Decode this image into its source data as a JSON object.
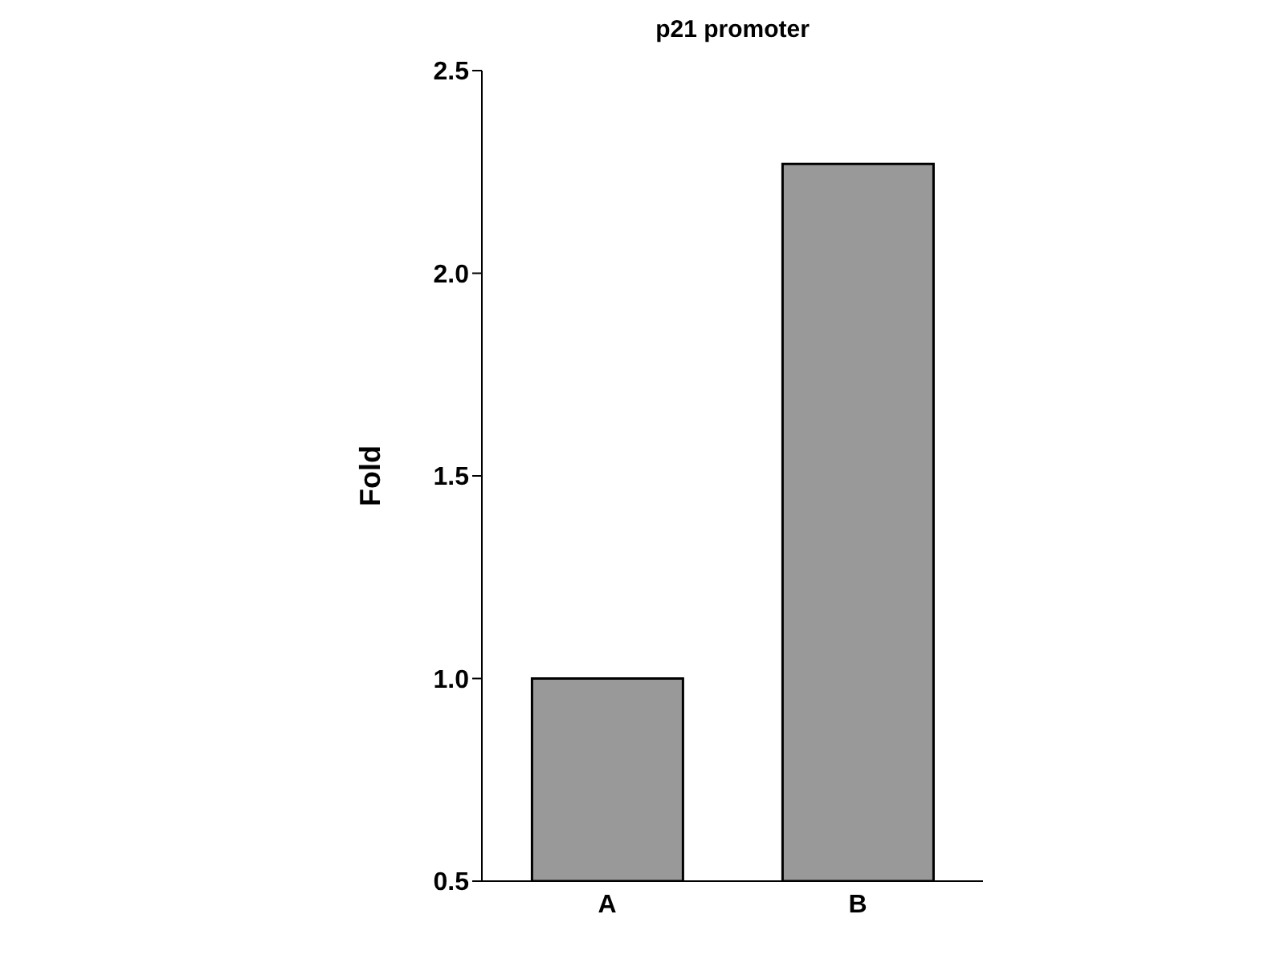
{
  "chart_data": {
    "type": "bar",
    "title": "p21 promoter",
    "ylabel": "Fold",
    "categories": [
      "A",
      "B"
    ],
    "values": [
      1.0,
      2.27
    ],
    "color": "#999999",
    "ylim": [
      0.5,
      2.5
    ],
    "yticks": [
      {
        "value": 0.5,
        "label": "0.5"
      },
      {
        "value": 1.0,
        "label": "1.0"
      },
      {
        "value": 1.5,
        "label": "1.5"
      },
      {
        "value": 2.0,
        "label": "2.0"
      },
      {
        "value": 2.5,
        "label": "2.5"
      }
    ],
    "grid": false,
    "legend": false
  }
}
